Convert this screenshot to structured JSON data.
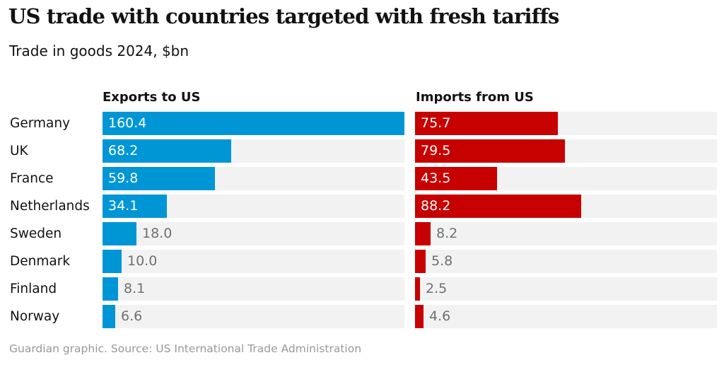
{
  "chart_data": {
    "type": "bar",
    "orientation": "horizontal",
    "title": "US trade with countries targeted with fresh tariffs",
    "subtitle": "Trade in goods 2024, $bn",
    "categories": [
      "Germany",
      "UK",
      "France",
      "Netherlands",
      "Sweden",
      "Denmark",
      "Finland",
      "Norway"
    ],
    "series": [
      {
        "name": "Exports to US",
        "color": "#0096D6",
        "values": [
          160.4,
          68.2,
          59.8,
          34.1,
          18.0,
          10.0,
          8.1,
          6.6
        ]
      },
      {
        "name": "Imports from US",
        "color": "#C70000",
        "values": [
          75.7,
          79.5,
          43.5,
          88.2,
          8.2,
          5.8,
          2.5,
          4.6
        ]
      }
    ],
    "xlim": [
      0,
      160.4
    ],
    "grid": false,
    "legend": "panel-headers",
    "source": "Guardian graphic. Source: US International Trade Administration"
  }
}
